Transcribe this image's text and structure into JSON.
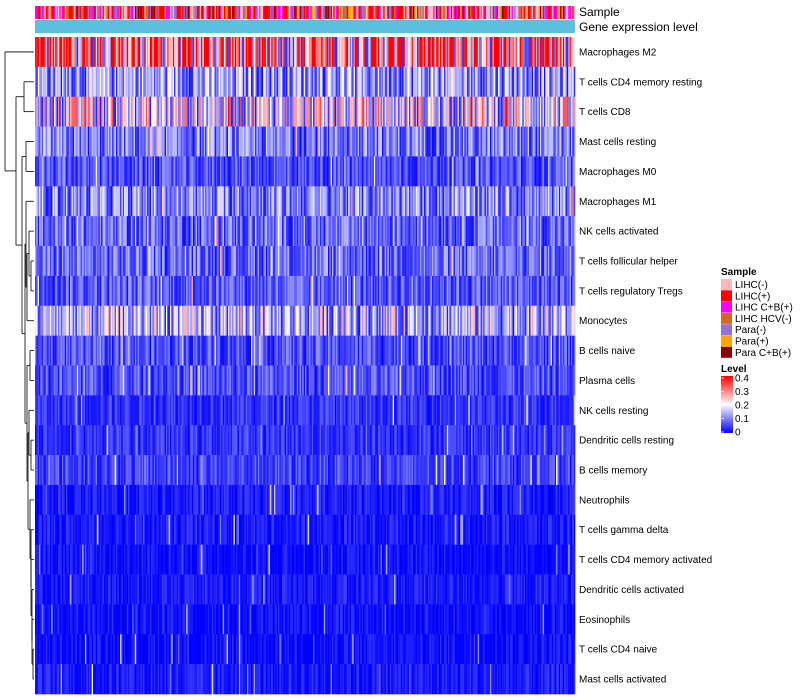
{
  "chart_data": {
    "type": "heatmap",
    "annotations": [
      "Sample",
      "Gene expression level"
    ],
    "rows": [
      {
        "label": "Macrophages M2",
        "mean": 0.3
      },
      {
        "label": "T cells CD4 memory resting",
        "mean": 0.12
      },
      {
        "label": "T cells CD8",
        "mean": 0.18
      },
      {
        "label": "Mast cells resting",
        "mean": 0.09
      },
      {
        "label": "Macrophages M0",
        "mean": 0.06
      },
      {
        "label": "Macrophages M1",
        "mean": 0.1
      },
      {
        "label": "NK cells activated",
        "mean": 0.08
      },
      {
        "label": "T cells follicular helper",
        "mean": 0.08
      },
      {
        "label": "T cells regulatory  Tregs",
        "mean": 0.07
      },
      {
        "label": "Monocytes",
        "mean": 0.14
      },
      {
        "label": "B cells naive",
        "mean": 0.06
      },
      {
        "label": "Plasma cells",
        "mean": 0.06
      },
      {
        "label": "NK cells resting",
        "mean": 0.04
      },
      {
        "label": "Dendritic cells resting",
        "mean": 0.04
      },
      {
        "label": "B cells memory",
        "mean": 0.05
      },
      {
        "label": "Neutrophils",
        "mean": 0.02
      },
      {
        "label": "T cells gamma delta",
        "mean": 0.02
      },
      {
        "label": "T cells CD4 memory activated",
        "mean": 0.01
      },
      {
        "label": "Dendritic cells activated",
        "mean": 0.02
      },
      {
        "label": "Eosinophils",
        "mean": 0.01
      },
      {
        "label": "T cells CD4 naive",
        "mean": 0.01
      },
      {
        "label": "Mast cells activated",
        "mean": 0.02
      }
    ],
    "n_columns": 400,
    "color_scale": {
      "title": "Level",
      "min": 0,
      "max": 0.4,
      "ticks": [
        "0.4",
        "0.3",
        "0.2",
        "0.1",
        "0"
      ],
      "colors": [
        "#0000ff",
        "#ffffff",
        "#ff0000"
      ]
    },
    "sample_legend": {
      "title": "Sample",
      "items": [
        {
          "label": "LIHC(-)",
          "color": "#ffb6c1"
        },
        {
          "label": "LIHC(+)",
          "color": "#ff0000"
        },
        {
          "label": "LIHC C+B(+)",
          "color": "#ff00ff"
        },
        {
          "label": "LIHC HCV(-)",
          "color": "#d2691e"
        },
        {
          "label": "Para(-)",
          "color": "#9370db"
        },
        {
          "label": "Para(+)",
          "color": "#ffa500"
        },
        {
          "label": "Para C+B(+)",
          "color": "#8b0000"
        }
      ]
    },
    "gene_expression_bar_color": "#5bc0de"
  }
}
